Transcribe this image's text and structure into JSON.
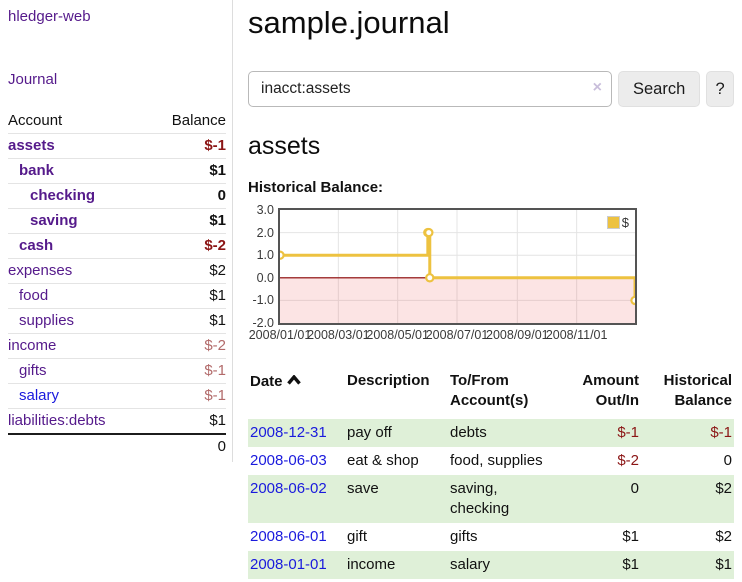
{
  "sidebar": {
    "brand": "hledger-web",
    "journal_link": "Journal",
    "account_header": "Account",
    "balance_header": "Balance",
    "accounts": [
      {
        "name": "assets",
        "level": 1,
        "balance": "$-1",
        "bold": true,
        "neg": "strong"
      },
      {
        "name": "bank",
        "level": 2,
        "balance": "$1",
        "bold": true,
        "neg": "none"
      },
      {
        "name": "checking",
        "level": 3,
        "balance": "0",
        "bold": true,
        "neg": "none"
      },
      {
        "name": "saving",
        "level": 3,
        "balance": "$1",
        "bold": true,
        "neg": "none"
      },
      {
        "name": "cash",
        "level": 2,
        "balance": "$-2",
        "bold": true,
        "neg": "strong"
      },
      {
        "name": "expenses",
        "level": 1,
        "balance": "$2",
        "bold": false,
        "neg": "none"
      },
      {
        "name": "food",
        "level": 2,
        "balance": "$1",
        "bold": false,
        "neg": "none"
      },
      {
        "name": "supplies",
        "level": 2,
        "balance": "$1",
        "bold": false,
        "neg": "none"
      },
      {
        "name": "income",
        "level": 1,
        "balance": "$-2",
        "bold": false,
        "neg": "soft"
      },
      {
        "name": "gifts",
        "level": 2,
        "balance": "$-1",
        "bold": false,
        "neg": "soft"
      },
      {
        "name": "salary",
        "level": 2,
        "balance": "$-1",
        "bold": false,
        "neg": "soft",
        "blue": true
      },
      {
        "name": "liabilities:debts",
        "level": 1,
        "balance": "$1",
        "bold": false,
        "neg": "none"
      }
    ],
    "total": "0"
  },
  "header": {
    "title": "sample.journal"
  },
  "search": {
    "value": "inacct:assets",
    "clear_icon": "×",
    "button_label": "Search",
    "help_label": "?"
  },
  "account_page": {
    "heading": "assets",
    "chart_label": "Historical Balance:"
  },
  "chart_data": {
    "type": "line",
    "title": "Historical Balance",
    "step": true,
    "series": [
      {
        "name": "$",
        "points": [
          [
            "2008-01-01",
            1
          ],
          [
            "2008-06-01",
            2
          ],
          [
            "2008-06-02",
            2
          ],
          [
            "2008-06-03",
            0
          ],
          [
            "2008-12-31",
            -1
          ]
        ]
      }
    ],
    "x_range": [
      "2008-01-01",
      "2008-12-31"
    ],
    "ylim": [
      -2,
      3
    ],
    "y_ticks": [
      3,
      2,
      1,
      0,
      -1,
      -2
    ],
    "y_tick_labels": [
      "3.0",
      "2.0",
      "1.0",
      "0.0",
      "-1.0",
      "-2.0"
    ],
    "x_ticks": [
      {
        "date": "2008-01-01",
        "label": "2008/01/01"
      },
      {
        "date": "2008-03-01",
        "label": "2008/03/01"
      },
      {
        "date": "2008-05-01",
        "label": "2008/05/01"
      },
      {
        "date": "2008-07-01",
        "label": "2008/07/01"
      },
      {
        "date": "2008-09-01",
        "label": "2008/09/01"
      },
      {
        "date": "2008-11-01",
        "label": "2008/11/01"
      }
    ],
    "legend_label": "$",
    "legend_position": "top-right",
    "grid": true,
    "line_color": "#edc240",
    "negative_region_color": "#f9dada",
    "zero_line_color": "#8b0000"
  },
  "register": {
    "columns": {
      "date": "Date",
      "description": "Description",
      "accounts": "To/From Account(s)",
      "amount": "Amount Out/In",
      "balance": "Historical Balance"
    },
    "rows": [
      {
        "date": "2008-12-31",
        "description": "pay off",
        "accounts": "debts",
        "amount": "$-1",
        "amount_neg": true,
        "balance": "$-1",
        "balance_neg": true
      },
      {
        "date": "2008-06-03",
        "description": "eat & shop",
        "accounts": "food, supplies",
        "amount": "$-2",
        "amount_neg": true,
        "balance": "0",
        "balance_neg": false
      },
      {
        "date": "2008-06-02",
        "description": "save",
        "accounts": "saving, checking",
        "amount": "0",
        "amount_neg": false,
        "balance": "$2",
        "balance_neg": false
      },
      {
        "date": "2008-06-01",
        "description": "gift",
        "accounts": "gifts",
        "amount": "$1",
        "amount_neg": false,
        "balance": "$2",
        "balance_neg": false
      },
      {
        "date": "2008-01-01",
        "description": "income",
        "accounts": "salary",
        "amount": "$1",
        "amount_neg": false,
        "balance": "$1",
        "balance_neg": false
      }
    ]
  },
  "colors": {
    "link_purple": "#551a8b",
    "link_blue": "#1a1add",
    "negative_strong": "#8b1515",
    "negative_soft": "#b26a6a",
    "row_stripe_green": "#dff0d8",
    "chart_line_yellow": "#edc240"
  }
}
